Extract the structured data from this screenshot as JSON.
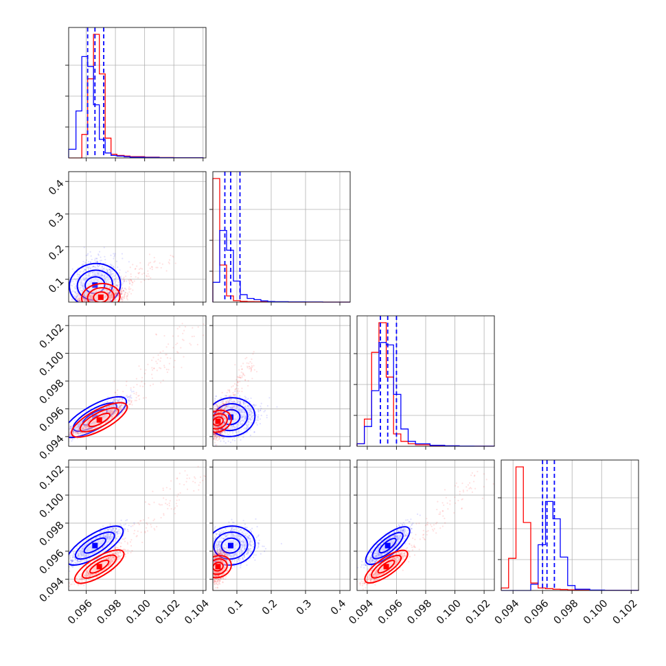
{
  "chart_data": {
    "type": "scatter",
    "title": "",
    "layout": "corner",
    "grid": true,
    "colors": {
      "series_a": "#0000ff",
      "series_b": "#ff0000"
    },
    "parameters": [
      {
        "range": [
          0.0948,
          0.1042
        ],
        "ticks": [
          0.096,
          0.098,
          0.1,
          0.102,
          0.104
        ],
        "tick_labels": [
          "0.096",
          "0.098",
          "0.100",
          "0.102",
          "0.104"
        ]
      },
      {
        "range": [
          0.03,
          0.43
        ],
        "ticks": [
          0.1,
          0.2,
          0.3,
          0.4
        ],
        "tick_labels": [
          "0.1",
          "0.2",
          "0.3",
          "0.4"
        ]
      },
      {
        "range": [
          0.0933,
          0.1027
        ],
        "ticks": [
          0.094,
          0.096,
          0.098,
          0.1,
          0.102
        ],
        "tick_labels": [
          "0.094",
          "0.096",
          "0.098",
          "0.100",
          "0.102"
        ]
      },
      {
        "range": [
          0.0932,
          0.1025
        ],
        "ticks": [
          0.094,
          0.096,
          0.098,
          0.1,
          0.102
        ],
        "tick_labels": [
          "0.094",
          "0.096",
          "0.098",
          "0.100",
          "0.102"
        ]
      }
    ],
    "histograms": [
      {
        "density_ticks": [
          0.25,
          0.5,
          0.75
        ],
        "series": [
          {
            "color": "#0000ff",
            "bins": [
              0.0948,
              0.0953,
              0.0957,
              0.0961,
              0.0965,
              0.0969,
              0.0973,
              0.0977,
              0.0981,
              0.0986,
              0.099,
              0.1,
              0.101,
              0.102,
              0.103,
              0.104
            ],
            "heights": [
              0.07,
              0.38,
              0.82,
              0.74,
              0.43,
              0.15,
              0.04,
              0.02,
              0.015,
              0.01,
              0.006,
              0.004,
              0.002,
              0.001,
              0.001
            ],
            "quantiles": [
              0.0961,
              0.0966,
              0.0972
            ]
          },
          {
            "color": "#ff0000",
            "bins": [
              0.0948,
              0.0953,
              0.0957,
              0.0961,
              0.0965,
              0.0969,
              0.0973,
              0.0977,
              0.0981,
              0.0986,
              0.099,
              0.1,
              0.101,
              0.102,
              0.103,
              0.104
            ],
            "heights": [
              0.0,
              0.0,
              0.19,
              0.64,
              1.0,
              0.68,
              0.16,
              0.03,
              0.02,
              0.015,
              0.01,
              0.006,
              0.003,
              0.001,
              0.001
            ]
          }
        ]
      },
      {
        "density_ticks": [
          0.25,
          0.5,
          0.75
        ],
        "series": [
          {
            "color": "#0000ff",
            "bins": [
              0.03,
              0.05,
              0.07,
              0.09,
              0.11,
              0.13,
              0.15,
              0.17,
              0.19,
              0.21,
              0.25,
              0.3,
              0.35,
              0.4,
              0.43
            ],
            "heights": [
              0.16,
              0.58,
              0.42,
              0.17,
              0.06,
              0.03,
              0.02,
              0.01,
              0.005,
              0.003,
              0.002,
              0.001,
              0.0,
              0.0
            ],
            "quantiles": [
              0.065,
              0.082,
              0.109
            ]
          },
          {
            "color": "#ff0000",
            "bins": [
              0.03,
              0.05,
              0.07,
              0.09,
              0.11,
              0.13,
              0.15,
              0.17,
              0.19,
              0.21,
              0.25,
              0.3,
              0.35,
              0.4,
              0.43
            ],
            "heights": [
              1.0,
              0.3,
              0.05,
              0.012,
              0.006,
              0.004,
              0.003,
              0.002,
              0.001,
              0.001,
              0.0,
              0.0,
              0.0,
              0.0
            ]
          }
        ]
      },
      {
        "density_ticks": [
          0.25,
          0.5,
          0.75
        ],
        "series": [
          {
            "color": "#0000ff",
            "bins": [
              0.0933,
              0.0938,
              0.0943,
              0.0948,
              0.0953,
              0.0958,
              0.0963,
              0.0968,
              0.0973,
              0.0983,
              0.0993,
              0.1003,
              0.1013,
              0.1027
            ],
            "heights": [
              0.02,
              0.16,
              0.45,
              0.84,
              0.82,
              0.42,
              0.14,
              0.04,
              0.02,
              0.008,
              0.004,
              0.002,
              0.001
            ],
            "quantiles": [
              0.0949,
              0.0954,
              0.096
            ]
          },
          {
            "color": "#ff0000",
            "bins": [
              0.0933,
              0.0938,
              0.0943,
              0.0948,
              0.0953,
              0.0958,
              0.0963,
              0.0968,
              0.0973,
              0.0983,
              0.0993,
              0.1003,
              0.1013,
              0.1027
            ],
            "heights": [
              0.02,
              0.22,
              0.76,
              1.0,
              0.56,
              0.1,
              0.04,
              0.02,
              0.012,
              0.006,
              0.003,
              0.001,
              0.001
            ]
          }
        ]
      },
      {
        "density_ticks": [
          0.25,
          0.5,
          0.75
        ],
        "series": [
          {
            "color": "#0000ff",
            "bins": [
              0.0932,
              0.0937,
              0.0942,
              0.0947,
              0.0952,
              0.0957,
              0.0962,
              0.0967,
              0.0972,
              0.0977,
              0.0982,
              0.0992,
              0.1002,
              0.1025
            ],
            "heights": [
              0.0,
              0.0,
              0.0,
              0.0,
              0.05,
              0.37,
              0.72,
              0.58,
              0.27,
              0.04,
              0.01,
              0.003,
              0.001
            ],
            "quantiles": [
              0.096,
              0.0963,
              0.0968
            ]
          },
          {
            "color": "#ff0000",
            "bins": [
              0.0932,
              0.0937,
              0.0942,
              0.0947,
              0.0952,
              0.0957,
              0.0962,
              0.0967,
              0.0972,
              0.0977,
              0.0982,
              0.0992,
              0.1002,
              0.1025
            ],
            "heights": [
              0.02,
              0.26,
              1.0,
              0.55,
              0.06,
              0.02,
              0.015,
              0.01,
              0.008,
              0.005,
              0.003,
              0.002,
              0.001
            ]
          }
        ]
      }
    ],
    "pairs": [
      {
        "x": 0,
        "y": 1,
        "series": [
          {
            "color": "#0000ff",
            "center": [
              0.0966,
              0.082
            ],
            "spread": [
              0.00075,
              0.035
            ],
            "corr": 0.15,
            "tail": [
              0.0,
              0.0
            ]
          },
          {
            "color": "#ff0000",
            "center": [
              0.097,
              0.045
            ],
            "spread": [
              0.0007,
              0.012
            ],
            "corr": 0.3,
            "tail": [
              0.0045,
              0.12
            ]
          }
        ]
      },
      {
        "x": 0,
        "y": 2,
        "series": [
          {
            "color": "#0000ff",
            "center": [
              0.0966,
              0.0954
            ],
            "spread": [
              0.0009,
              0.0006
            ],
            "corr": 0.9,
            "tail": [
              0.0,
              0.0
            ]
          },
          {
            "color": "#ff0000",
            "center": [
              0.0969,
              0.0952
            ],
            "spread": [
              0.0008,
              0.0005
            ],
            "corr": 0.9,
            "tail": [
              0.0068,
              0.0068
            ]
          }
        ]
      },
      {
        "x": 1,
        "y": 2,
        "series": [
          {
            "color": "#0000ff",
            "center": [
              0.082,
              0.0954
            ],
            "spread": [
              0.035,
              0.0006
            ],
            "corr": 0.2,
            "tail": [
              0.0,
              0.0
            ]
          },
          {
            "color": "#ff0000",
            "center": [
              0.045,
              0.0951
            ],
            "spread": [
              0.012,
              0.0005
            ],
            "corr": 0.25,
            "tail": [
              0.1,
              0.0045
            ]
          }
        ]
      },
      {
        "x": 0,
        "y": 3,
        "series": [
          {
            "color": "#0000ff",
            "center": [
              0.0966,
              0.0964
            ],
            "spread": [
              0.0008,
              0.0006
            ],
            "corr": 0.85,
            "tail": [
              0.0,
              0.0
            ]
          },
          {
            "color": "#ff0000",
            "center": [
              0.0969,
              0.0949
            ],
            "spread": [
              0.0007,
              0.0005
            ],
            "corr": 0.88,
            "tail": [
              0.0068,
              0.0068
            ]
          }
        ]
      },
      {
        "x": 1,
        "y": 3,
        "series": [
          {
            "color": "#0000ff",
            "center": [
              0.082,
              0.0964
            ],
            "spread": [
              0.035,
              0.0006
            ],
            "corr": 0.2,
            "tail": [
              0.0,
              0.0
            ]
          },
          {
            "color": "#ff0000",
            "center": [
              0.045,
              0.0949
            ],
            "spread": [
              0.012,
              0.0005
            ],
            "corr": 0.2,
            "tail": [
              0.0,
              0.0
            ]
          }
        ]
      },
      {
        "x": 2,
        "y": 3,
        "series": [
          {
            "color": "#0000ff",
            "center": [
              0.0954,
              0.0964
            ],
            "spread": [
              0.0006,
              0.0006
            ],
            "corr": 0.85,
            "tail": [
              0.0,
              0.0
            ]
          },
          {
            "color": "#ff0000",
            "center": [
              0.0953,
              0.0949
            ],
            "spread": [
              0.0006,
              0.0005
            ],
            "corr": 0.88,
            "tail": [
              0.0068,
              0.0068
            ]
          }
        ]
      }
    ]
  }
}
